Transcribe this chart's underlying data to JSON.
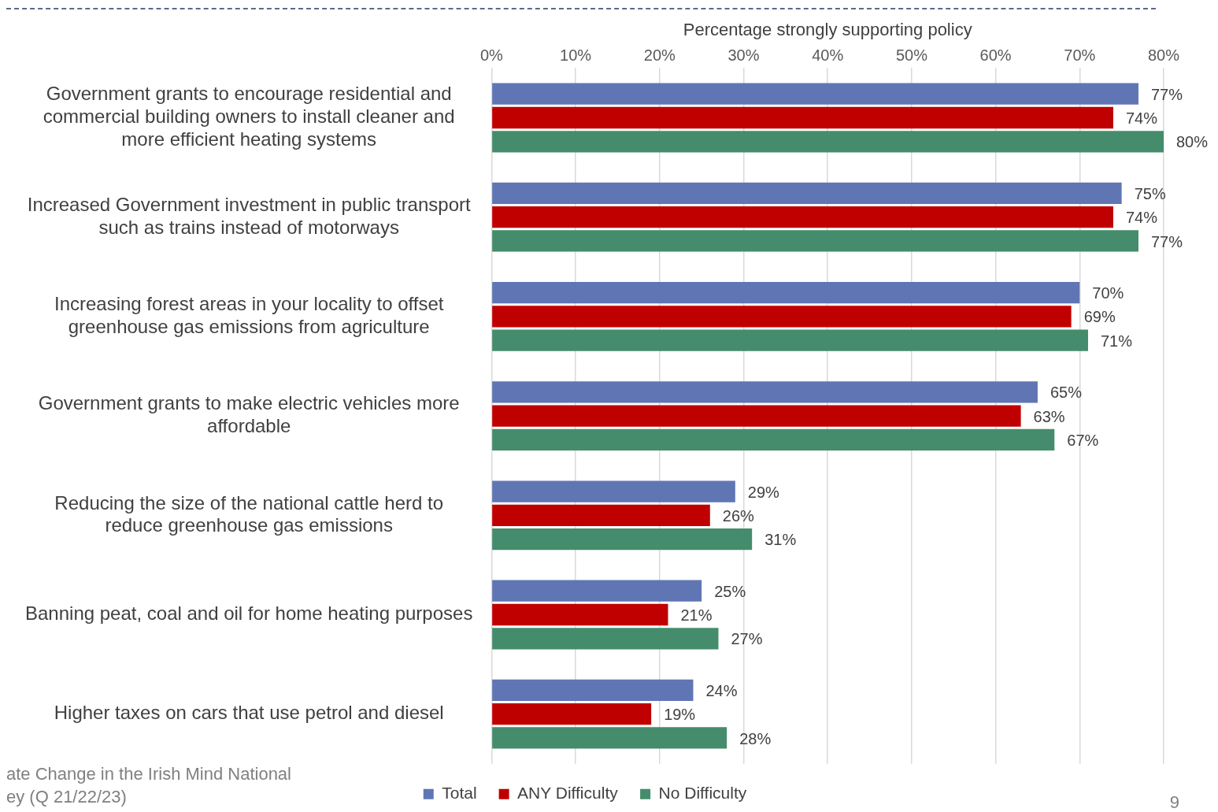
{
  "chart_data": {
    "type": "bar",
    "orientation": "horizontal",
    "xlabel": "Percentage strongly supporting policy",
    "categories": [
      "Government grants to encourage residential and commercial building owners to install cleaner and more efficient heating systems",
      "Increased Government investment in public transport such as trains instead of motorways",
      "Increasing forest areas in your locality to offset greenhouse gas emissions from agriculture",
      "Government grants to make electric vehicles more affordable",
      "Reducing the size of the national cattle herd to reduce greenhouse gas emissions",
      "Banning peat, coal and oil for home heating purposes",
      "Higher taxes on cars that use petrol and diesel"
    ],
    "series": [
      {
        "name": "Total",
        "color": "#6076b4",
        "values": [
          77,
          75,
          70,
          65,
          29,
          25,
          24
        ],
        "value_labels": [
          "77%",
          "75%",
          "70%",
          "65%",
          "29%",
          "25%",
          "24%"
        ]
      },
      {
        "name": "ANY Difficulty",
        "color": "#c00000",
        "values": [
          74,
          74,
          69,
          63,
          26,
          21,
          19
        ],
        "value_labels": [
          "74%",
          "74%",
          "69%",
          "63%",
          "26%",
          "21%",
          "19%"
        ]
      },
      {
        "name": "No Difficulty",
        "color": "#448c6c",
        "values": [
          80,
          77,
          71,
          67,
          31,
          27,
          28
        ],
        "value_labels": [
          "80%",
          "77%",
          "71%",
          "67%",
          "31%",
          "27%",
          "28%"
        ]
      }
    ],
    "xlim": [
      0,
      80
    ],
    "xticks": [
      {
        "value": 0,
        "label": "0%"
      },
      {
        "value": 10,
        "label": "10%"
      },
      {
        "value": 20,
        "label": "20%"
      },
      {
        "value": 30,
        "label": "30%"
      },
      {
        "value": 40,
        "label": "40%"
      },
      {
        "value": 50,
        "label": "50%"
      },
      {
        "value": 60,
        "label": "60%"
      },
      {
        "value": 70,
        "label": "70%"
      },
      {
        "value": 80,
        "label": "80%"
      }
    ],
    "grid": "x",
    "legend": "bottom",
    "annotations": [
      "ate Change in the Irish Mind National\ney (Q 21/22/23)",
      "9"
    ]
  }
}
